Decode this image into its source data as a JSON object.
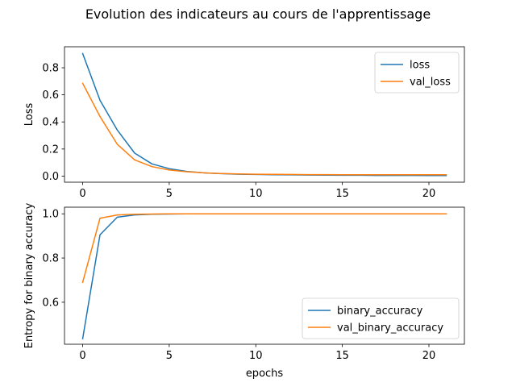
{
  "figure": {
    "suptitle": "Evolution des indicateurs au cours de l'apprentissage"
  },
  "colors": {
    "train": "#1f77b4",
    "val": "#ff7f0e",
    "legend_border": "#cccccc",
    "axes": "#000000"
  },
  "chart_data": [
    {
      "type": "line",
      "title": "",
      "xlabel": "",
      "ylabel": "Loss",
      "xlim": [
        -1.05,
        22.05
      ],
      "ylim": [
        -0.045,
        0.955
      ],
      "xticks": [
        0,
        5,
        10,
        15,
        20
      ],
      "yticks": [
        0.0,
        0.2,
        0.4,
        0.6,
        0.8
      ],
      "ytick_labels": [
        "0.0",
        "0.2",
        "0.4",
        "0.6",
        "0.8"
      ],
      "grid": false,
      "legend_position": "top-right",
      "x": [
        0,
        1,
        2,
        3,
        4,
        5,
        6,
        7,
        8,
        9,
        10,
        11,
        12,
        13,
        14,
        15,
        16,
        17,
        18,
        19,
        20,
        21
      ],
      "series": [
        {
          "name": "loss",
          "color": "#1f77b4",
          "values": [
            0.905,
            0.56,
            0.34,
            0.17,
            0.09,
            0.055,
            0.035,
            0.024,
            0.018,
            0.014,
            0.012,
            0.01,
            0.009,
            0.008,
            0.007,
            0.006,
            0.006,
            0.005,
            0.005,
            0.005,
            0.004,
            0.004
          ]
        },
        {
          "name": "val_loss",
          "color": "#ff7f0e",
          "values": [
            0.685,
            0.44,
            0.235,
            0.12,
            0.07,
            0.045,
            0.032,
            0.024,
            0.019,
            0.016,
            0.014,
            0.013,
            0.012,
            0.011,
            0.011,
            0.01,
            0.01,
            0.01,
            0.01,
            0.01,
            0.01,
            0.01
          ]
        }
      ]
    },
    {
      "type": "line",
      "title": "",
      "xlabel": "epochs",
      "ylabel": "Entropy for binary accuracy",
      "xlim": [
        -1.05,
        22.05
      ],
      "ylim": [
        0.41,
        1.03
      ],
      "xticks": [
        0,
        5,
        10,
        15,
        20
      ],
      "yticks": [
        0.6,
        0.8,
        1.0
      ],
      "ytick_labels": [
        "0.6",
        "0.8",
        "1.0"
      ],
      "grid": false,
      "legend_position": "bottom-right",
      "x": [
        0,
        1,
        2,
        3,
        4,
        5,
        6,
        7,
        8,
        9,
        10,
        11,
        12,
        13,
        14,
        15,
        16,
        17,
        18,
        19,
        20,
        21
      ],
      "series": [
        {
          "name": "binary_accuracy",
          "color": "#1f77b4",
          "values": [
            0.435,
            0.905,
            0.985,
            0.995,
            0.998,
            0.999,
            1.0,
            1.0,
            1.0,
            1.0,
            1.0,
            1.0,
            1.0,
            1.0,
            1.0,
            1.0,
            1.0,
            1.0,
            1.0,
            1.0,
            1.0,
            1.0
          ]
        },
        {
          "name": "val_binary_accuracy",
          "color": "#ff7f0e",
          "values": [
            0.69,
            0.98,
            0.995,
            0.998,
            0.999,
            1.0,
            1.0,
            1.0,
            1.0,
            1.0,
            1.0,
            1.0,
            1.0,
            1.0,
            1.0,
            1.0,
            1.0,
            1.0,
            1.0,
            1.0,
            1.0,
            1.0
          ]
        }
      ]
    }
  ]
}
